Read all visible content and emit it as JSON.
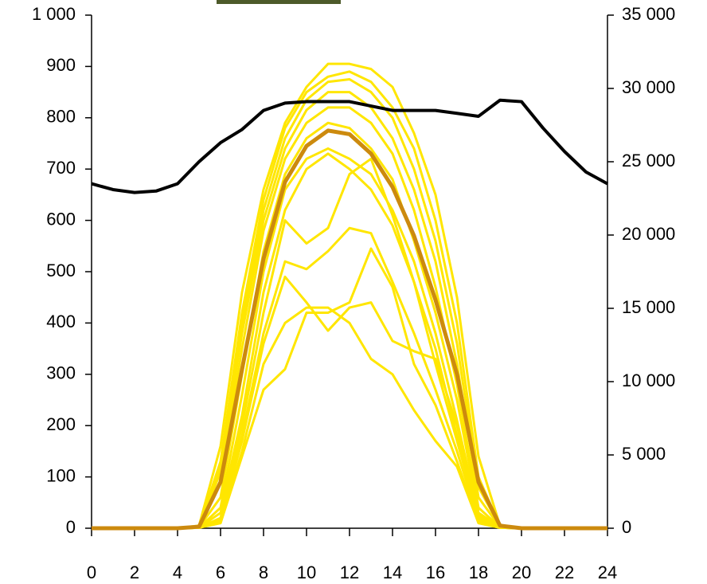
{
  "chart_data": {
    "type": "line",
    "x": [
      0,
      1,
      2,
      3,
      4,
      5,
      6,
      7,
      8,
      9,
      10,
      11,
      12,
      13,
      14,
      15,
      16,
      17,
      18,
      19,
      20,
      21,
      22,
      23,
      24
    ],
    "xlim": [
      0,
      24
    ],
    "xticks": [
      0,
      2,
      4,
      6,
      8,
      10,
      12,
      14,
      16,
      18,
      20,
      22,
      24
    ],
    "ylim": [
      0,
      1000
    ],
    "yticks": [
      0,
      100,
      200,
      300,
      400,
      500,
      600,
      700,
      800,
      900,
      {
        "value": 1000,
        "label": "1 000"
      }
    ],
    "y2lim": [
      0,
      35000
    ],
    "y2ticks": [
      0,
      {
        "value": 5000,
        "label": "5 000"
      },
      {
        "value": 10000,
        "label": "10 000"
      },
      {
        "value": 15000,
        "label": "15 000"
      },
      {
        "value": 20000,
        "label": "20 000"
      },
      {
        "value": 25000,
        "label": "25 000"
      },
      {
        "value": 30000,
        "label": "30 000"
      },
      {
        "value": 35000,
        "label": "35 000"
      }
    ],
    "series": [
      {
        "color": "#ffe600",
        "values": [
          0,
          0,
          0,
          0,
          0,
          5,
          160,
          460,
          660,
          790,
          860,
          905,
          905,
          895,
          860,
          770,
          650,
          450,
          140,
          5,
          0,
          0,
          0,
          0,
          0
        ]
      },
      {
        "color": "#ffe600",
        "values": [
          0,
          0,
          0,
          0,
          0,
          3,
          130,
          420,
          640,
          780,
          850,
          880,
          890,
          870,
          820,
          740,
          600,
          400,
          100,
          3,
          0,
          0,
          0,
          0,
          0
        ]
      },
      {
        "color": "#ffe600",
        "values": [
          0,
          0,
          0,
          0,
          0,
          3,
          120,
          400,
          620,
          760,
          835,
          870,
          875,
          850,
          800,
          700,
          560,
          360,
          80,
          3,
          0,
          0,
          0,
          0,
          0
        ]
      },
      {
        "color": "#ffe600",
        "values": [
          0,
          0,
          0,
          0,
          0,
          2,
          110,
          380,
          600,
          740,
          815,
          850,
          850,
          820,
          760,
          660,
          520,
          320,
          60,
          2,
          0,
          0,
          0,
          0,
          0
        ]
      },
      {
        "color": "#ffe600",
        "values": [
          0,
          0,
          0,
          0,
          0,
          2,
          90,
          350,
          580,
          720,
          790,
          820,
          820,
          790,
          730,
          620,
          470,
          280,
          40,
          2,
          0,
          0,
          0,
          0,
          0
        ]
      },
      {
        "color": "#ffe600",
        "values": [
          0,
          0,
          0,
          0,
          0,
          2,
          60,
          300,
          540,
          690,
          760,
          790,
          780,
          740,
          680,
          560,
          420,
          250,
          30,
          2,
          0,
          0,
          0,
          0,
          0
        ]
      },
      {
        "color": "#ffe600",
        "values": [
          0,
          0,
          0,
          0,
          0,
          1,
          40,
          260,
          500,
          660,
          720,
          740,
          720,
          690,
          620,
          520,
          380,
          210,
          25,
          1,
          0,
          0,
          0,
          0,
          0
        ]
      },
      {
        "color": "#ffe600",
        "values": [
          0,
          0,
          0,
          0,
          0,
          1,
          30,
          220,
          460,
          620,
          700,
          730,
          700,
          660,
          590,
          480,
          350,
          180,
          20,
          1,
          0,
          0,
          0,
          0,
          0
        ]
      },
      {
        "color": "#ffe600",
        "values": [
          0,
          0,
          0,
          0,
          0,
          1,
          20,
          200,
          420,
          600,
          555,
          585,
          690,
          720,
          610,
          480,
          320,
          170,
          20,
          1,
          0,
          0,
          0,
          0,
          0
        ]
      },
      {
        "color": "#ffe600",
        "values": [
          0,
          0,
          0,
          0,
          0,
          1,
          15,
          180,
          380,
          520,
          505,
          540,
          585,
          575,
          480,
          380,
          270,
          150,
          15,
          1,
          0,
          0,
          0,
          0,
          0
        ]
      },
      {
        "color": "#ffe600",
        "values": [
          0,
          0,
          0,
          0,
          0,
          1,
          15,
          170,
          360,
          490,
          440,
          385,
          430,
          440,
          365,
          345,
          330,
          200,
          15,
          1,
          0,
          0,
          0,
          0,
          0
        ]
      },
      {
        "color": "#ffe600",
        "values": [
          0,
          0,
          0,
          0,
          0,
          1,
          10,
          150,
          320,
          400,
          430,
          430,
          400,
          330,
          300,
          230,
          170,
          120,
          10,
          1,
          0,
          0,
          0,
          0,
          0
        ]
      },
      {
        "color": "#ffe600",
        "values": [
          0,
          0,
          0,
          0,
          0,
          1,
          10,
          140,
          270,
          310,
          420,
          420,
          440,
          545,
          470,
          320,
          240,
          130,
          10,
          1,
          0,
          0,
          0,
          0,
          0
        ]
      },
      {
        "color": "#cc8a0e",
        "values": [
          0,
          0,
          0,
          0,
          0,
          3,
          90,
          310,
          525,
          675,
          745,
          775,
          768,
          730,
          665,
          570,
          445,
          300,
          90,
          5,
          0,
          0,
          0,
          0,
          0
        ]
      },
      {
        "color": "#000000",
        "axis": "y2",
        "values": [
          23500,
          23100,
          22900,
          23000,
          23500,
          25000,
          26300,
          27200,
          28500,
          29000,
          29100,
          29100,
          29100,
          28800,
          28500,
          28500,
          28500,
          28300,
          28100,
          29200,
          29100,
          27300,
          25700,
          24300,
          23500
        ]
      }
    ]
  }
}
